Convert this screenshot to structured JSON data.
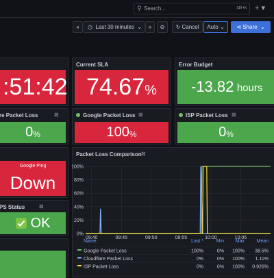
{
  "topbar": {
    "search_placeholder": "Search...",
    "shortcut": "ctrl+k"
  },
  "toolbar": {
    "time_range": "Last 30 minutes",
    "cancel": "Cancel",
    "refresh": "Auto",
    "share": "Share"
  },
  "stat_panels": [
    {
      "value": ":51:42"
    },
    {
      "title": "Current SLA",
      "value": "74.67",
      "unit": "%"
    },
    {
      "title": "Error Budget",
      "value": "-13.82",
      "unit": "hours"
    },
    {
      "title": "re Packet Loss",
      "value": "0",
      "unit": "%"
    },
    {
      "title": "Google Packet Loss",
      "value": "100",
      "unit": "%"
    },
    {
      "title": "ISP Packet Loss",
      "value": "0",
      "unit": "%"
    },
    {
      "label": "Google Ping",
      "value": "Down"
    },
    {
      "title": "PS Status",
      "value": "OK"
    }
  ],
  "chart_data": {
    "type": "line",
    "title": "Packet Loss Comparison",
    "xlim": [
      579,
      610
    ],
    "xticks": [
      {
        "value": 580,
        "label": "09:40"
      },
      {
        "value": 585,
        "label": "09:45"
      },
      {
        "value": 590,
        "label": "09:50"
      },
      {
        "value": 595,
        "label": "09:55"
      },
      {
        "value": 600,
        "label": "10:00"
      },
      {
        "value": 605,
        "label": "10:05"
      }
    ],
    "ylim": [
      0,
      100
    ],
    "yticks": [
      {
        "value": 0,
        "label": "0%"
      },
      {
        "value": 20,
        "label": "20%"
      },
      {
        "value": 40,
        "label": "40%"
      },
      {
        "value": 60,
        "label": "60%"
      },
      {
        "value": 80,
        "label": "80%"
      },
      {
        "value": 100,
        "label": "100%"
      }
    ],
    "grid": true,
    "series": [
      {
        "name": "Google Packet Loss",
        "color": "#73bf69",
        "x": [
          579,
          598.4,
          598.5,
          610
        ],
        "values": [
          0,
          0,
          100,
          100
        ]
      },
      {
        "name": "Cloudflare Packet Loss",
        "color": "#8ab8ff",
        "x": [
          579,
          581.4,
          581.5,
          581.6,
          598.2,
          598.3,
          598.6,
          610
        ],
        "values": [
          0,
          0,
          37,
          0,
          0,
          100,
          0,
          0
        ]
      },
      {
        "name": "ISP Packet Loss",
        "color": "#fade2a",
        "x": [
          579,
          598.6,
          598.7,
          599.3,
          599.4,
          610
        ],
        "values": [
          0,
          0,
          100,
          100,
          0,
          0
        ]
      }
    ]
  },
  "legend": {
    "columns": [
      "Name",
      "Last *",
      "Min",
      "Max",
      "Mean"
    ],
    "rows": [
      [
        "100%",
        "0%",
        "100%",
        "38.5%"
      ],
      [
        "0%",
        "0%",
        "100%",
        "1.11%"
      ],
      [
        "0%",
        "0%",
        "100%",
        "0.926%"
      ]
    ]
  }
}
